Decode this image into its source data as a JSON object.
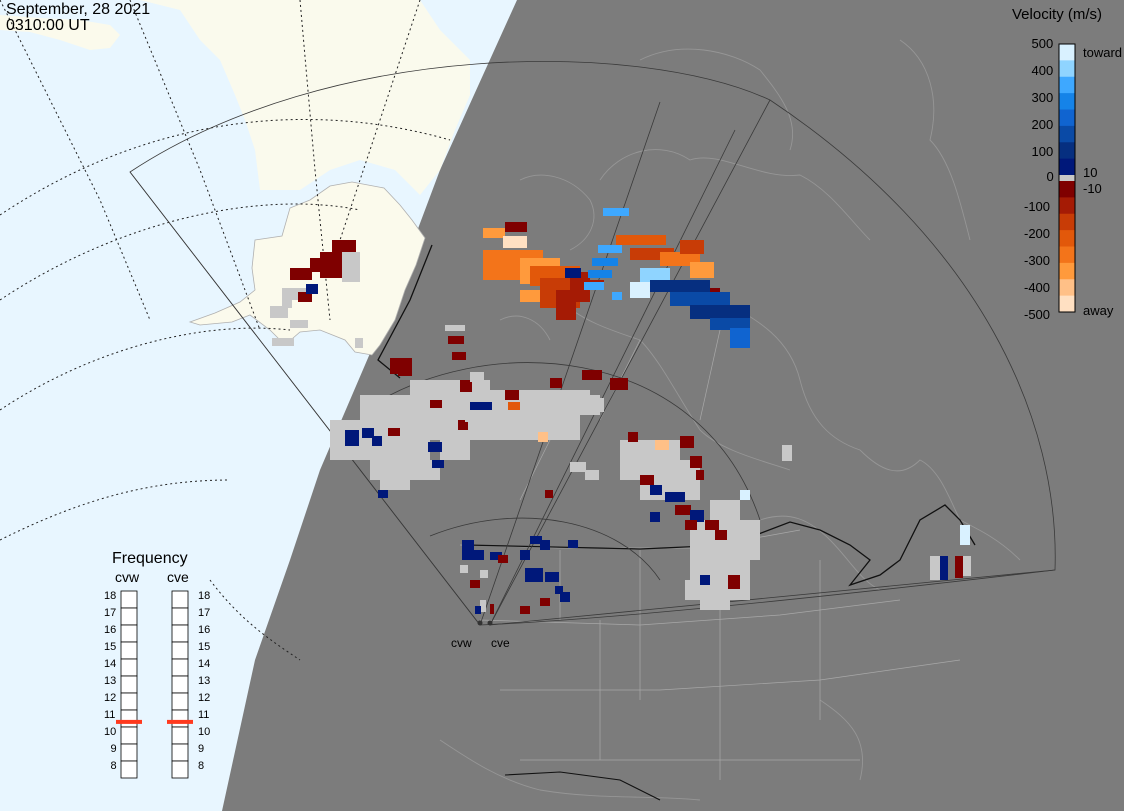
{
  "header": {
    "date": "September, 28 2021",
    "time": "0310:00 UT"
  },
  "velocity_scale": {
    "title": "Velocity (m/s)",
    "labels": [
      "500",
      "400",
      "300",
      "200",
      "100",
      "0",
      "-100",
      "-200",
      "-300",
      "-400",
      "-500"
    ],
    "toward_label": "toward",
    "away_label": "away",
    "plus_label": "10",
    "minus_label": "-10",
    "colors_toward": [
      "#d9f1ff",
      "#8fd4ff",
      "#3ea8ff",
      "#1583e8",
      "#1064d0",
      "#0a4aa6",
      "#062f80",
      "#00187a"
    ],
    "colors_away": [
      "#7f0000",
      "#a51b05",
      "#c83c06",
      "#e2580a",
      "#f3741a",
      "#ff9a3c",
      "#ffc087",
      "#ffe0c2"
    ],
    "ground_scatter_color": "#c8c8c8"
  },
  "frequency": {
    "title": "Frequency",
    "radars": [
      {
        "name": "cvw",
        "freq_mhz": 10.8
      },
      {
        "name": "cve",
        "freq_mhz": 10.8
      }
    ],
    "ticks": [
      "18",
      "17",
      "16",
      "15",
      "14",
      "13",
      "12",
      "11",
      "10",
      "9",
      "8"
    ],
    "marker_color": "#ff3a1e"
  },
  "radars": [
    {
      "label": "cvw"
    },
    {
      "label": "cve"
    }
  ],
  "map": {
    "ocean_color": "#e8f6ff",
    "land_color": "#fbfaec",
    "night_color": "#7c7c7c"
  }
}
